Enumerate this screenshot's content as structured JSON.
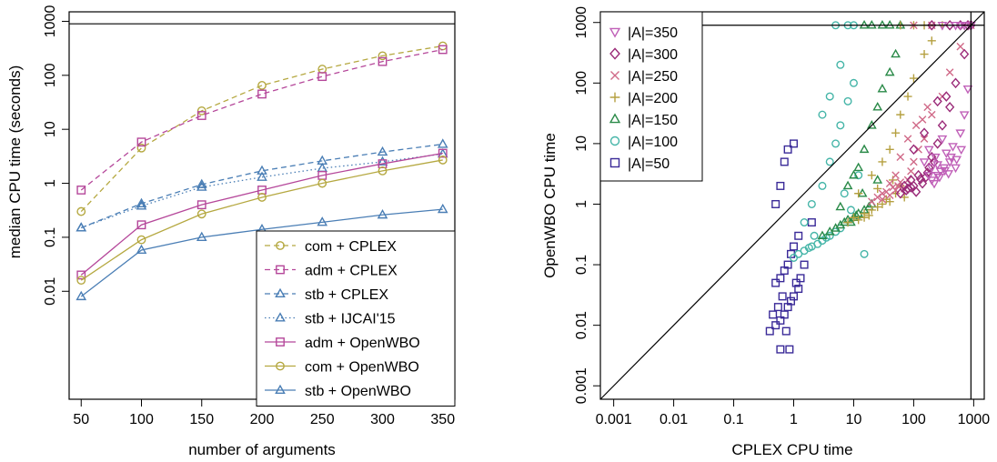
{
  "chart_data": [
    {
      "type": "line",
      "title": "",
      "xlabel": "number of arguments",
      "ylabel": "median CPU time (seconds)",
      "x": [
        50,
        100,
        150,
        200,
        250,
        300,
        350
      ],
      "xlim": [
        40,
        360
      ],
      "ylim": [
        0.0001,
        1500
      ],
      "yscale": "log",
      "x_ticks": [
        "50",
        "100",
        "150",
        "200",
        "250",
        "300",
        "350"
      ],
      "y_ticks": [
        {
          "v": 0.01,
          "label": "0.01"
        },
        {
          "v": 0.1,
          "label": "0.1"
        },
        {
          "v": 1,
          "label": "1"
        },
        {
          "v": 10,
          "label": "10"
        },
        {
          "v": 100,
          "label": "100"
        },
        {
          "v": 1000,
          "label": "1000"
        }
      ],
      "reference_line": {
        "y": 900
      },
      "grid": false,
      "legend_position": "bottom-right",
      "series": [
        {
          "name": "com + CPLEX",
          "color": "#b5a840",
          "marker": "circle",
          "dash": "dashed",
          "values": [
            0.3,
            4.5,
            22,
            65,
            130,
            230,
            350
          ]
        },
        {
          "name": "adm + CPLEX",
          "color": "#b5479a",
          "marker": "square",
          "dash": "dashed",
          "values": [
            0.75,
            5.8,
            18,
            45,
            95,
            180,
            300
          ]
        },
        {
          "name": "stb + CPLEX",
          "color": "#4a7eb5",
          "marker": "triangle",
          "dash": "dashed",
          "values": [
            0.15,
            0.42,
            0.95,
            1.7,
            2.6,
            3.8,
            5.3
          ]
        },
        {
          "name": "stb + IJCAI'15",
          "color": "#4a7eb5",
          "marker": "triangle",
          "dash": "dotted",
          "values": [
            0.15,
            0.38,
            0.85,
            1.3,
            1.9,
            2.5,
            3.5
          ]
        },
        {
          "name": "adm + OpenWBO",
          "color": "#b5479a",
          "marker": "square",
          "dash": "solid",
          "values": [
            0.02,
            0.17,
            0.4,
            0.75,
            1.4,
            2.3,
            3.6
          ]
        },
        {
          "name": "com + OpenWBO",
          "color": "#b5a840",
          "marker": "circle",
          "dash": "solid",
          "values": [
            0.016,
            0.09,
            0.27,
            0.55,
            1.0,
            1.7,
            2.7
          ]
        },
        {
          "name": "stb + OpenWBO",
          "color": "#4a7eb5",
          "marker": "triangle",
          "dash": "solid",
          "values": [
            0.008,
            0.058,
            0.1,
            0.14,
            0.19,
            0.26,
            0.33
          ]
        }
      ]
    },
    {
      "type": "scatter",
      "title": "",
      "xlabel": "CPLEX CPU time",
      "ylabel": "OpenWBO CPU time",
      "xscale": "log",
      "yscale": "log",
      "xlim": [
        0.0006,
        1500
      ],
      "ylim": [
        0.0006,
        1500
      ],
      "x_ticks": [
        {
          "v": 0.001,
          "label": "0.001"
        },
        {
          "v": 0.01,
          "label": "0.01"
        },
        {
          "v": 0.1,
          "label": "0.1"
        },
        {
          "v": 1,
          "label": "1"
        },
        {
          "v": 10,
          "label": "10"
        },
        {
          "v": 100,
          "label": "100"
        },
        {
          "v": 1000,
          "label": "1000"
        }
      ],
      "y_ticks": [
        {
          "v": 0.001,
          "label": "0.001"
        },
        {
          "v": 0.01,
          "label": "0.01"
        },
        {
          "v": 0.1,
          "label": "0.1"
        },
        {
          "v": 1,
          "label": "1"
        },
        {
          "v": 10,
          "label": "10"
        },
        {
          "v": 100,
          "label": "100"
        },
        {
          "v": 1000,
          "label": "1000"
        }
      ],
      "timeout": 900,
      "diagonal": true,
      "grid": false,
      "legend_position": "top-left",
      "series": [
        {
          "name": "|A|=350",
          "color": "#c060b8",
          "marker": "triangle-down",
          "points": [
            [
              150,
              5
            ],
            [
              180,
              8
            ],
            [
              200,
              4
            ],
            [
              230,
              6
            ],
            [
              250,
              4.5
            ],
            [
              280,
              3.5
            ],
            [
              300,
              12
            ],
            [
              350,
              7
            ],
            [
              400,
              5
            ],
            [
              450,
              9
            ],
            [
              500,
              4
            ],
            [
              600,
              15
            ],
            [
              700,
              30
            ],
            [
              800,
              80
            ],
            [
              900,
              900
            ],
            [
              300,
              900
            ],
            [
              500,
              900
            ],
            [
              700,
              900
            ],
            [
              200,
              2.5
            ],
            [
              250,
              3
            ],
            [
              320,
              4
            ],
            [
              380,
              3.2
            ],
            [
              420,
              6
            ],
            [
              520,
              5.5
            ],
            [
              620,
              8
            ],
            [
              180,
              3
            ],
            [
              220,
              2.2
            ],
            [
              270,
              2.8
            ],
            [
              330,
              3.6
            ],
            [
              600,
              900
            ]
          ]
        },
        {
          "name": "|A|=300",
          "color": "#9a2a78",
          "marker": "diamond",
          "points": [
            [
              60,
              1.5
            ],
            [
              70,
              2
            ],
            [
              80,
              1.8
            ],
            [
              90,
              2.5
            ],
            [
              100,
              2
            ],
            [
              110,
              1.6
            ],
            [
              120,
              3
            ],
            [
              140,
              2.2
            ],
            [
              160,
              2.8
            ],
            [
              180,
              4
            ],
            [
              200,
              6
            ],
            [
              250,
              10
            ],
            [
              300,
              20
            ],
            [
              400,
              40
            ],
            [
              500,
              100
            ],
            [
              700,
              300
            ],
            [
              900,
              900
            ],
            [
              200,
              900
            ],
            [
              400,
              900
            ],
            [
              600,
              900
            ],
            [
              100,
              8
            ],
            [
              150,
              15
            ],
            [
              250,
              50
            ],
            [
              130,
              2.6
            ],
            [
              170,
              3.3
            ],
            [
              220,
              5
            ],
            [
              90,
              1.9
            ],
            [
              75,
              1.7
            ],
            [
              350,
              60
            ],
            [
              800,
              900
            ]
          ]
        },
        {
          "name": "|A|=250",
          "color": "#d06a88",
          "marker": "cross",
          "points": [
            [
              20,
              1.1
            ],
            [
              25,
              1.3
            ],
            [
              30,
              1.2
            ],
            [
              35,
              1.6
            ],
            [
              40,
              1.4
            ],
            [
              45,
              1.9
            ],
            [
              50,
              1.7
            ],
            [
              55,
              2
            ],
            [
              60,
              2.3
            ],
            [
              70,
              1.8
            ],
            [
              80,
              2.5
            ],
            [
              90,
              3.5
            ],
            [
              100,
              5
            ],
            [
              120,
              8
            ],
            [
              150,
              12
            ],
            [
              200,
              30
            ],
            [
              300,
              60
            ],
            [
              400,
              150
            ],
            [
              600,
              400
            ],
            [
              900,
              900
            ],
            [
              100,
              900
            ],
            [
              200,
              900
            ],
            [
              50,
              3
            ],
            [
              60,
              6
            ],
            [
              80,
              12
            ],
            [
              110,
              20
            ],
            [
              140,
              25
            ],
            [
              170,
              40
            ],
            [
              30,
              1.5
            ],
            [
              40,
              2.2
            ]
          ]
        },
        {
          "name": "|A|=200",
          "color": "#b5a040",
          "marker": "plus",
          "points": [
            [
              8,
              0.5
            ],
            [
              10,
              0.6
            ],
            [
              12,
              0.55
            ],
            [
              15,
              0.7
            ],
            [
              18,
              0.65
            ],
            [
              20,
              0.8
            ],
            [
              25,
              0.9
            ],
            [
              30,
              1
            ],
            [
              35,
              1.2
            ],
            [
              40,
              1.1
            ],
            [
              50,
              1.5
            ],
            [
              60,
              2
            ],
            [
              70,
              1.3
            ],
            [
              20,
              3
            ],
            [
              30,
              5
            ],
            [
              40,
              8
            ],
            [
              50,
              15
            ],
            [
              60,
              30
            ],
            [
              80,
              60
            ],
            [
              100,
              120
            ],
            [
              150,
              300
            ],
            [
              200,
              500
            ],
            [
              300,
              900
            ],
            [
              100,
              900
            ],
            [
              60,
              900
            ],
            [
              150,
              900
            ],
            [
              25,
              1.8
            ],
            [
              45,
              2.5
            ],
            [
              15,
              0.6
            ],
            [
              12,
              1.5
            ]
          ]
        },
        {
          "name": "|A|=150",
          "color": "#2a8a48",
          "marker": "triangle",
          "points": [
            [
              3,
              0.3
            ],
            [
              4,
              0.35
            ],
            [
              5,
              0.4
            ],
            [
              6,
              0.45
            ],
            [
              7,
              0.5
            ],
            [
              8,
              0.55
            ],
            [
              10,
              0.6
            ],
            [
              12,
              0.7
            ],
            [
              15,
              0.8
            ],
            [
              18,
              0.9
            ],
            [
              20,
              1
            ],
            [
              10,
              3
            ],
            [
              15,
              8
            ],
            [
              20,
              20
            ],
            [
              25,
              40
            ],
            [
              30,
              80
            ],
            [
              40,
              150
            ],
            [
              50,
              300
            ],
            [
              60,
              900
            ],
            [
              20,
              900
            ],
            [
              30,
              900
            ],
            [
              15,
              900
            ],
            [
              40,
              900
            ],
            [
              8,
              2
            ],
            [
              12,
              4
            ],
            [
              6,
              0.9
            ],
            [
              9,
              0.5
            ],
            [
              11,
              0.65
            ],
            [
              14,
              1.5
            ],
            [
              25,
              2.5
            ]
          ]
        },
        {
          "name": "|A|=100",
          "color": "#45b5a8",
          "marker": "circle",
          "points": [
            [
              1,
              0.13
            ],
            [
              1.2,
              0.15
            ],
            [
              1.5,
              0.17
            ],
            [
              1.8,
              0.19
            ],
            [
              2,
              0.2
            ],
            [
              2.5,
              0.22
            ],
            [
              3,
              0.25
            ],
            [
              3.5,
              0.28
            ],
            [
              4,
              0.3
            ],
            [
              5,
              0.35
            ],
            [
              6,
              0.4
            ],
            [
              2,
              1
            ],
            [
              3,
              2
            ],
            [
              4,
              5
            ],
            [
              5,
              10
            ],
            [
              6,
              20
            ],
            [
              8,
              50
            ],
            [
              10,
              100
            ],
            [
              5,
              900
            ],
            [
              8,
              900
            ],
            [
              10,
              900
            ],
            [
              3,
              30
            ],
            [
              4,
              60
            ],
            [
              6,
              200
            ],
            [
              2.2,
              0.3
            ],
            [
              1.5,
              0.5
            ],
            [
              7,
              1.5
            ],
            [
              9,
              0.8
            ],
            [
              12,
              3
            ],
            [
              15,
              0.15
            ]
          ]
        },
        {
          "name": "|A|=50",
          "color": "#3a2a98",
          "marker": "square",
          "points": [
            [
              0.4,
              0.008
            ],
            [
              0.5,
              0.01
            ],
            [
              0.6,
              0.012
            ],
            [
              0.7,
              0.015
            ],
            [
              0.8,
              0.02
            ],
            [
              0.9,
              0.025
            ],
            [
              1,
              0.03
            ],
            [
              1.2,
              0.04
            ],
            [
              0.5,
              0.05
            ],
            [
              0.6,
              0.06
            ],
            [
              0.7,
              0.08
            ],
            [
              0.8,
              0.1
            ],
            [
              0.9,
              0.15
            ],
            [
              1,
              0.2
            ],
            [
              1.2,
              0.3
            ],
            [
              0.5,
              1
            ],
            [
              0.6,
              2
            ],
            [
              0.7,
              5
            ],
            [
              0.8,
              8
            ],
            [
              1,
              10
            ],
            [
              0.55,
              0.02
            ],
            [
              0.65,
              0.03
            ],
            [
              0.75,
              0.008
            ],
            [
              0.45,
              0.015
            ],
            [
              1.1,
              0.05
            ],
            [
              1.3,
              0.06
            ],
            [
              0.85,
              0.004
            ],
            [
              0.6,
              0.004
            ],
            [
              1.5,
              0.1
            ],
            [
              2,
              0.5
            ]
          ]
        }
      ]
    }
  ]
}
